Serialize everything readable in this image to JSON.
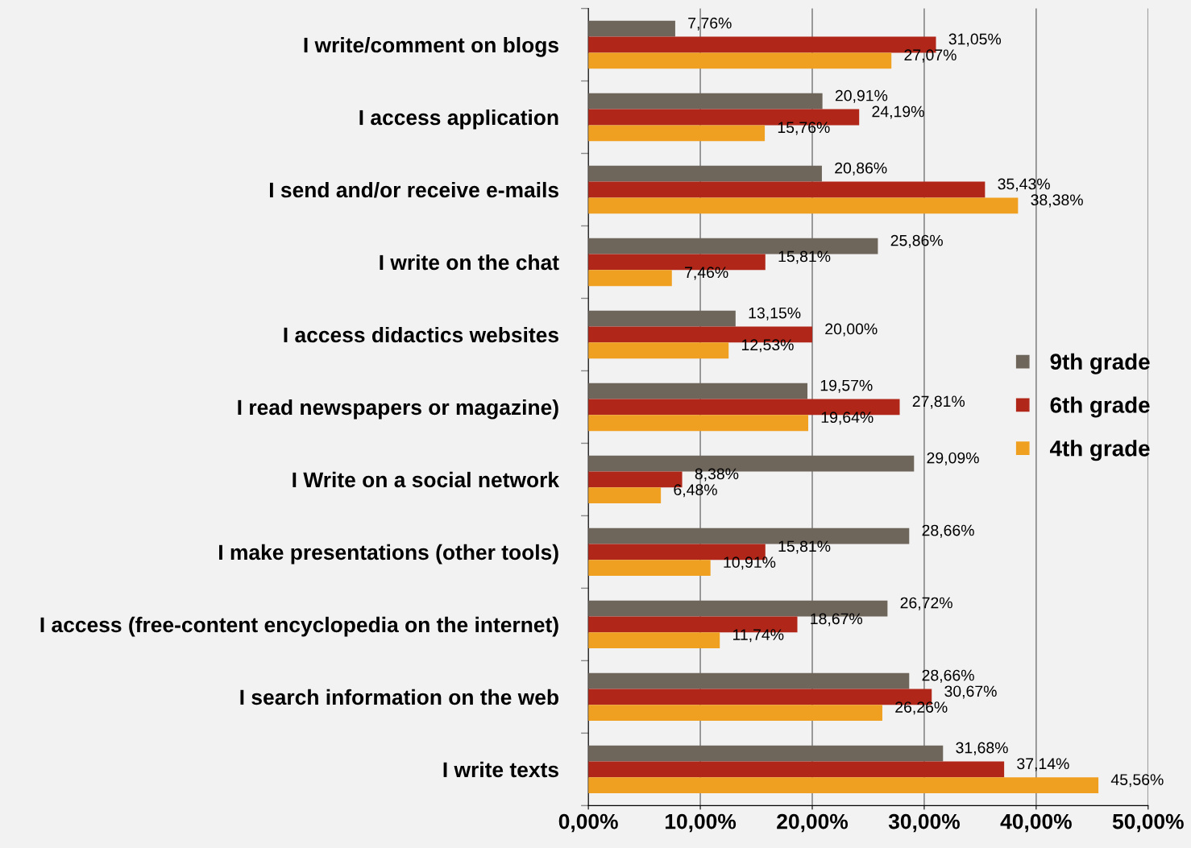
{
  "chart_data": {
    "type": "bar",
    "orientation": "horizontal",
    "categories": [
      "I write/comment on blogs",
      "I access application",
      "I send and/or receive e-mails",
      "I write on the chat",
      "I access didactics websites",
      "I read newspapers or magazine)",
      "I Write on a social network",
      "I make presentations (other tools)",
      "I access (free-content encyclopedia on the internet)",
      "I search information on the web",
      "I write texts"
    ],
    "series": [
      {
        "name": "9th grade",
        "color": "#6e655b",
        "values": [
          7.76,
          20.91,
          20.86,
          25.86,
          13.15,
          19.57,
          29.09,
          28.66,
          26.72,
          28.66,
          31.68
        ],
        "value_labels": [
          "7,76%",
          "20,91%",
          "20,86%",
          "25,86%",
          "13,15%",
          "19,57%",
          "29,09%",
          "28,66%",
          "26,72%",
          "28,66%",
          "31,68%"
        ]
      },
      {
        "name": "6th grade",
        "color": "#b0271a",
        "values": [
          31.05,
          24.19,
          35.43,
          15.81,
          20.0,
          27.81,
          8.38,
          15.81,
          18.67,
          30.67,
          37.14
        ],
        "value_labels": [
          "31,05%",
          "24,19%",
          "35,43%",
          "15,81%",
          "20,00%",
          "27,81%",
          "8,38%",
          "15,81%",
          "18,67%",
          "30,67%",
          "37,14%"
        ]
      },
      {
        "name": "4th grade",
        "color": "#f0a020",
        "values": [
          27.07,
          15.76,
          38.38,
          7.46,
          12.53,
          19.64,
          6.48,
          10.91,
          11.74,
          26.26,
          45.56
        ],
        "value_labels": [
          "27,07%",
          "15,76%",
          "38,38%",
          "7,46%",
          "12,53%",
          "19,64%",
          "6,48%",
          "10,91%",
          "11,74%",
          "26,26%",
          "45,56%"
        ]
      }
    ],
    "xlim": [
      0,
      50
    ],
    "xticks": [
      {
        "value": 0,
        "label": "0,00%"
      },
      {
        "value": 10,
        "label": "10,00%"
      },
      {
        "value": 20,
        "label": "20,00%"
      },
      {
        "value": 30,
        "label": "30,00%"
      },
      {
        "value": 40,
        "label": "40,00%"
      },
      {
        "value": 50,
        "label": "50,00%"
      }
    ],
    "grid": "x",
    "legend": "right"
  }
}
